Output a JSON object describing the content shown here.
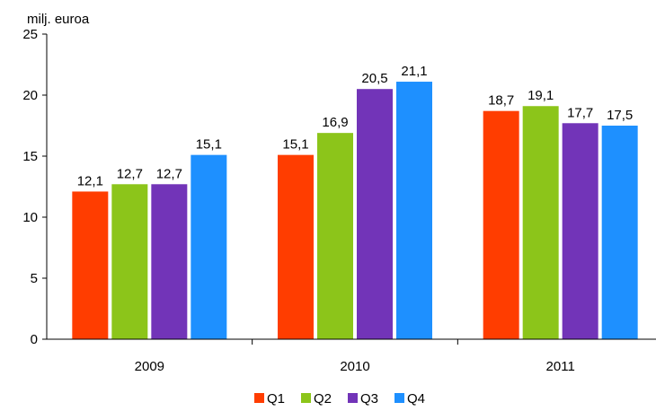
{
  "chart_data": {
    "type": "bar",
    "ylabel": "milj. euroa",
    "categories": [
      "2009",
      "2010",
      "2011"
    ],
    "series": [
      {
        "name": "Q1",
        "color": "#ff3d00",
        "values": [
          12.1,
          15.1,
          18.7
        ],
        "labels": [
          "12,1",
          "15,1",
          "18,7"
        ]
      },
      {
        "name": "Q2",
        "color": "#8cc51a",
        "values": [
          12.7,
          16.9,
          19.1
        ],
        "labels": [
          "12,7",
          "16,9",
          "19,1"
        ]
      },
      {
        "name": "Q3",
        "color": "#7234b8",
        "values": [
          12.7,
          20.5,
          17.7
        ],
        "labels": [
          "12,7",
          "20,5",
          "17,7"
        ]
      },
      {
        "name": "Q4",
        "color": "#1e90ff",
        "values": [
          15.1,
          21.1,
          17.5
        ],
        "labels": [
          "15,1",
          "21,1",
          "17,5"
        ]
      }
    ],
    "ylim": [
      0,
      25
    ],
    "yticks": [
      "0",
      "5",
      "10",
      "15",
      "20",
      "25"
    ],
    "grid": false,
    "legend": "bottom"
  }
}
